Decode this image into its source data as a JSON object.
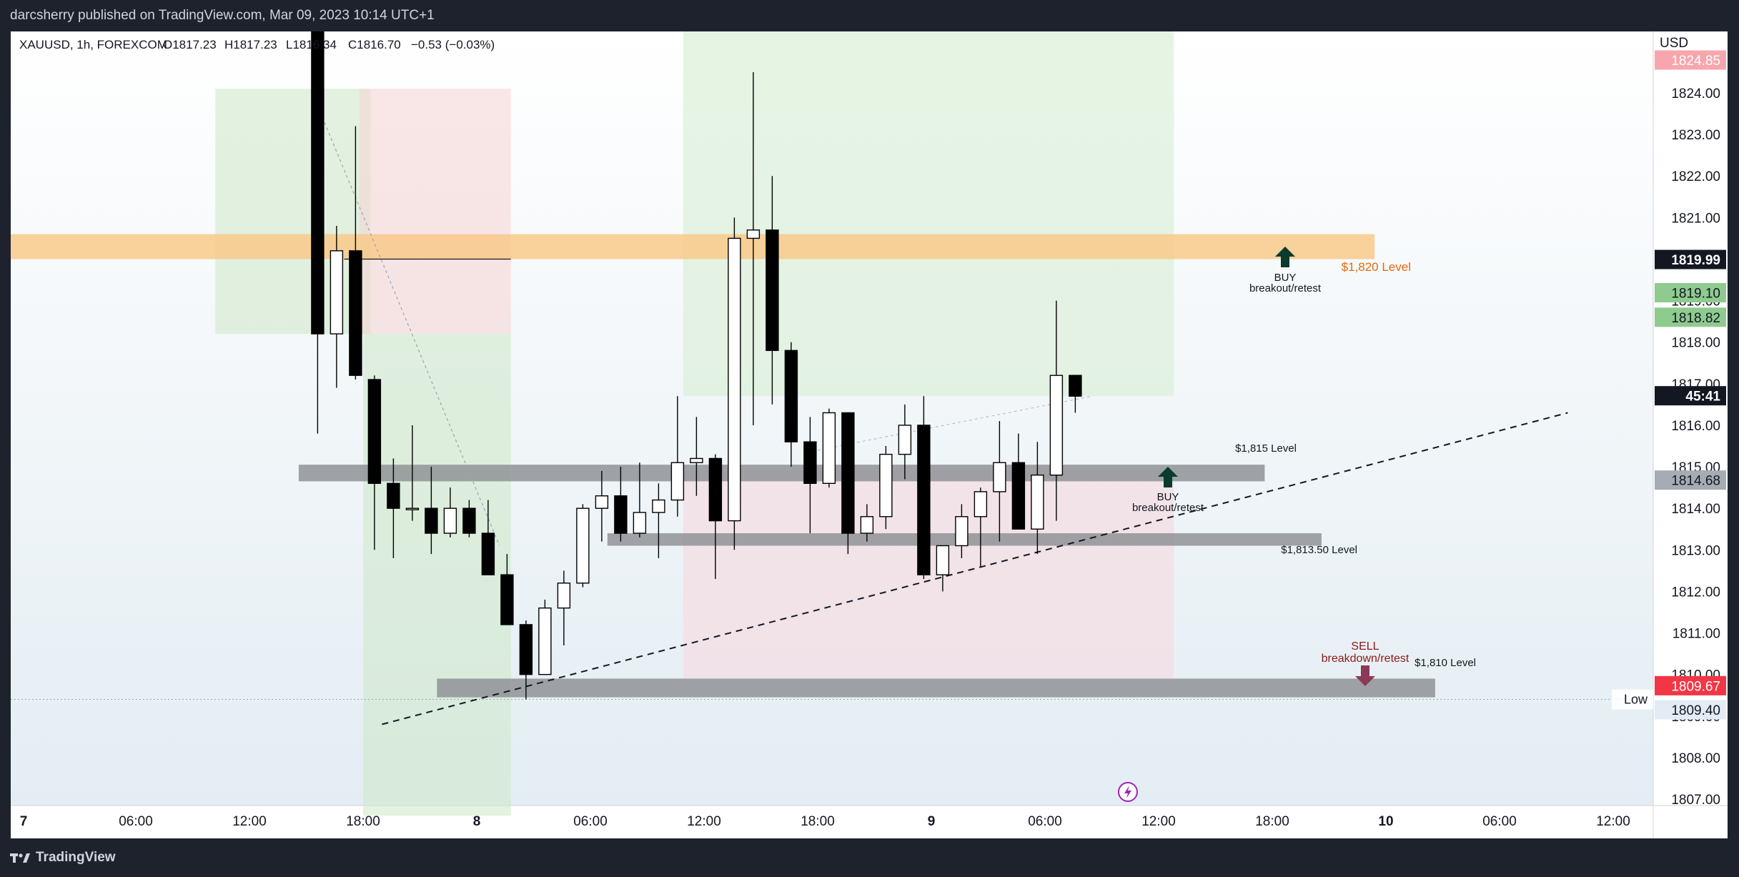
{
  "header": {
    "published_text": "darcsherry published on TradingView.com, Mar 09, 2023 10:14 UTC+1"
  },
  "footer": {
    "brand": "TradingView"
  },
  "legend": {
    "symbol": "XAUUSD, 1h, FOREXCOM",
    "open": "O1817.23",
    "high": "H1817.23",
    "low": "L1816.34",
    "close": "C1816.70",
    "change": "−0.53 (−0.03%)"
  },
  "colors": {
    "up_body": "#ffffff",
    "down_body": "#000000",
    "orange_zone": "#f9c98a",
    "grey_level": "#8f9297",
    "buy_arrow": "#0b3b2e",
    "sell_arrow": "#8a3a57",
    "level_1820": "#e8670c",
    "sell_text": "#8b1a1a",
    "price_red": "#f23645",
    "price_green": "#8fca8f"
  },
  "chart_data": {
    "type": "candlestick",
    "symbol": "XAUUSD",
    "timeframe": "1h",
    "currency_label": "USD",
    "y_ticks": [
      1807,
      1808,
      1809,
      1810,
      1811,
      1812,
      1813,
      1814,
      1815,
      1816,
      1817,
      1818,
      1819,
      1820,
      1821,
      1822,
      1823,
      1824
    ],
    "y_tick_labels": [
      "1807.00",
      "1808.00",
      "1809.00",
      "1810.00",
      "1811.00",
      "1812.00",
      "1813.00",
      "1814.00",
      "1815.00",
      "1816.00",
      "1817.00",
      "1818.00",
      "1819.00",
      "1820.00",
      "1821.00",
      "1822.00",
      "1823.00",
      "1824.00"
    ],
    "x_ticks": [
      {
        "label": "7",
        "bar": -0.3,
        "bold": true
      },
      {
        "label": "06:00",
        "bar": 6
      },
      {
        "label": "12:00",
        "bar": 12
      },
      {
        "label": "18:00",
        "bar": 18
      },
      {
        "label": "8",
        "bar": 24,
        "bold": true
      },
      {
        "label": "06:00",
        "bar": 30
      },
      {
        "label": "12:00",
        "bar": 36
      },
      {
        "label": "18:00",
        "bar": 42
      },
      {
        "label": "9",
        "bar": 48,
        "bold": true
      },
      {
        "label": "06:00",
        "bar": 54
      },
      {
        "label": "12:00",
        "bar": 60
      },
      {
        "label": "18:00",
        "bar": 66
      },
      {
        "label": "10",
        "bar": 72,
        "bold": true
      },
      {
        "label": "06:00",
        "bar": 78
      },
      {
        "label": "12:00",
        "bar": 84
      }
    ],
    "candles": [
      {
        "t": 16,
        "o": 1830.5,
        "h": 1833,
        "l": 1815.8,
        "c": 1818.2
      },
      {
        "t": 17,
        "o": 1818.2,
        "h": 1820.8,
        "l": 1816.9,
        "c": 1820.2
      },
      {
        "t": 18,
        "o": 1820.2,
        "h": 1823.2,
        "l": 1817.1,
        "c": 1817.2
      },
      {
        "t": 19,
        "o": 1817.1,
        "h": 1817.2,
        "l": 1813.0,
        "c": 1814.6
      },
      {
        "t": 20,
        "o": 1814.6,
        "h": 1815.2,
        "l": 1812.8,
        "c": 1814.0
      },
      {
        "t": 21,
        "o": 1814.0,
        "h": 1816.0,
        "l": 1813.7,
        "c": 1814.0
      },
      {
        "t": 22,
        "o": 1814.0,
        "h": 1815.0,
        "l": 1812.9,
        "c": 1813.4
      },
      {
        "t": 23,
        "o": 1813.4,
        "h": 1814.5,
        "l": 1813.3,
        "c": 1814.0
      },
      {
        "t": 24,
        "o": 1814.0,
        "h": 1814.2,
        "l": 1813.3,
        "c": 1813.4
      },
      {
        "t": 25,
        "o": 1813.4,
        "h": 1814.2,
        "l": 1812.5,
        "c": 1812.4
      },
      {
        "t": 26,
        "o": 1812.4,
        "h": 1812.9,
        "l": 1811.2,
        "c": 1811.2
      },
      {
        "t": 27,
        "o": 1811.2,
        "h": 1811.3,
        "l": 1809.4,
        "c": 1810.0
      },
      {
        "t": 28,
        "o": 1810.0,
        "h": 1811.8,
        "l": 1810.0,
        "c": 1811.6
      },
      {
        "t": 29,
        "o": 1811.6,
        "h": 1812.5,
        "l": 1810.7,
        "c": 1812.2
      },
      {
        "t": 30,
        "o": 1812.2,
        "h": 1814.1,
        "l": 1812.1,
        "c": 1814.0
      },
      {
        "t": 31,
        "o": 1814.0,
        "h": 1814.9,
        "l": 1813.2,
        "c": 1814.3
      },
      {
        "t": 32,
        "o": 1814.3,
        "h": 1815.0,
        "l": 1813.2,
        "c": 1813.4
      },
      {
        "t": 33,
        "o": 1813.4,
        "h": 1815.1,
        "l": 1813.3,
        "c": 1813.9
      },
      {
        "t": 34,
        "o": 1813.9,
        "h": 1814.6,
        "l": 1812.8,
        "c": 1814.2
      },
      {
        "t": 35,
        "o": 1814.2,
        "h": 1816.7,
        "l": 1813.8,
        "c": 1815.1
      },
      {
        "t": 36,
        "o": 1815.1,
        "h": 1816.2,
        "l": 1814.3,
        "c": 1815.2
      },
      {
        "t": 37,
        "o": 1815.2,
        "h": 1815.3,
        "l": 1812.3,
        "c": 1813.7
      },
      {
        "t": 38,
        "o": 1813.7,
        "h": 1821.0,
        "l": 1813.0,
        "c": 1820.5
      },
      {
        "t": 39,
        "o": 1820.5,
        "h": 1824.5,
        "l": 1816.0,
        "c": 1820.7
      },
      {
        "t": 40,
        "o": 1820.7,
        "h": 1822.0,
        "l": 1816.5,
        "c": 1817.8
      },
      {
        "t": 41,
        "o": 1817.8,
        "h": 1818.0,
        "l": 1815.0,
        "c": 1815.6
      },
      {
        "t": 42,
        "o": 1815.6,
        "h": 1816.2,
        "l": 1813.4,
        "c": 1814.6
      },
      {
        "t": 43,
        "o": 1814.6,
        "h": 1816.4,
        "l": 1814.5,
        "c": 1816.3
      },
      {
        "t": 44,
        "o": 1816.3,
        "h": 1816.3,
        "l": 1812.9,
        "c": 1813.4
      },
      {
        "t": 45,
        "o": 1813.4,
        "h": 1814.1,
        "l": 1813.2,
        "c": 1813.8
      },
      {
        "t": 46,
        "o": 1813.8,
        "h": 1815.5,
        "l": 1813.5,
        "c": 1815.3
      },
      {
        "t": 47,
        "o": 1815.3,
        "h": 1816.5,
        "l": 1814.7,
        "c": 1816.0
      },
      {
        "t": 48,
        "o": 1816.0,
        "h": 1816.7,
        "l": 1812.3,
        "c": 1812.4
      },
      {
        "t": 49,
        "o": 1812.4,
        "h": 1813.0,
        "l": 1812.0,
        "c": 1813.1
      },
      {
        "t": 50,
        "o": 1813.1,
        "h": 1814.1,
        "l": 1812.8,
        "c": 1813.8
      },
      {
        "t": 51,
        "o": 1813.8,
        "h": 1814.5,
        "l": 1812.6,
        "c": 1814.4
      },
      {
        "t": 52,
        "o": 1814.4,
        "h": 1816.1,
        "l": 1813.2,
        "c": 1815.1
      },
      {
        "t": 53,
        "o": 1815.1,
        "h": 1815.8,
        "l": 1813.5,
        "c": 1813.5
      },
      {
        "t": 54,
        "o": 1813.5,
        "h": 1815.6,
        "l": 1812.9,
        "c": 1814.8
      },
      {
        "t": 55,
        "o": 1814.8,
        "h": 1819.0,
        "l": 1813.7,
        "c": 1817.2
      },
      {
        "t": 56,
        "o": 1817.2,
        "h": 1817.2,
        "l": 1816.3,
        "c": 1816.7
      }
    ],
    "levels": [
      {
        "label": "$1,820 Level",
        "price": 1820.0
      },
      {
        "label": "$1,815 Level",
        "price": 1814.9
      },
      {
        "label": "$1,813.50 Level",
        "price": 1813.2
      },
      {
        "label": "$1,810 Level",
        "price": 1809.7
      }
    ],
    "annotations": {
      "buy_1": {
        "line1": "BUY",
        "line2": "breakout/retest"
      },
      "buy_2": {
        "line1": "BUY",
        "line2": "breakout/retest"
      },
      "sell": {
        "line1": "SELL",
        "line2": "breakdown/retest"
      }
    },
    "price_labels": [
      {
        "text": "1824.85",
        "price": 1824.85,
        "kind": "red-faded"
      },
      {
        "text": "1819.99",
        "price": 1819.99,
        "kind": "dark"
      },
      {
        "text": "1819.10",
        "price": 1819.1,
        "kind": "green"
      },
      {
        "text": "1818.82",
        "price": 1818.82,
        "kind": "green"
      },
      {
        "text": "45:41",
        "price": 1816.71,
        "kind": "dark"
      },
      {
        "text": "1814.68",
        "price": 1814.68,
        "kind": "grey"
      },
      {
        "text": "1809.67",
        "price": 1809.67,
        "kind": "red"
      },
      {
        "text": "1809.40",
        "price": 1809.4,
        "kind": "light"
      }
    ],
    "low_marker": {
      "label": "Low",
      "price": 1809.4
    }
  }
}
